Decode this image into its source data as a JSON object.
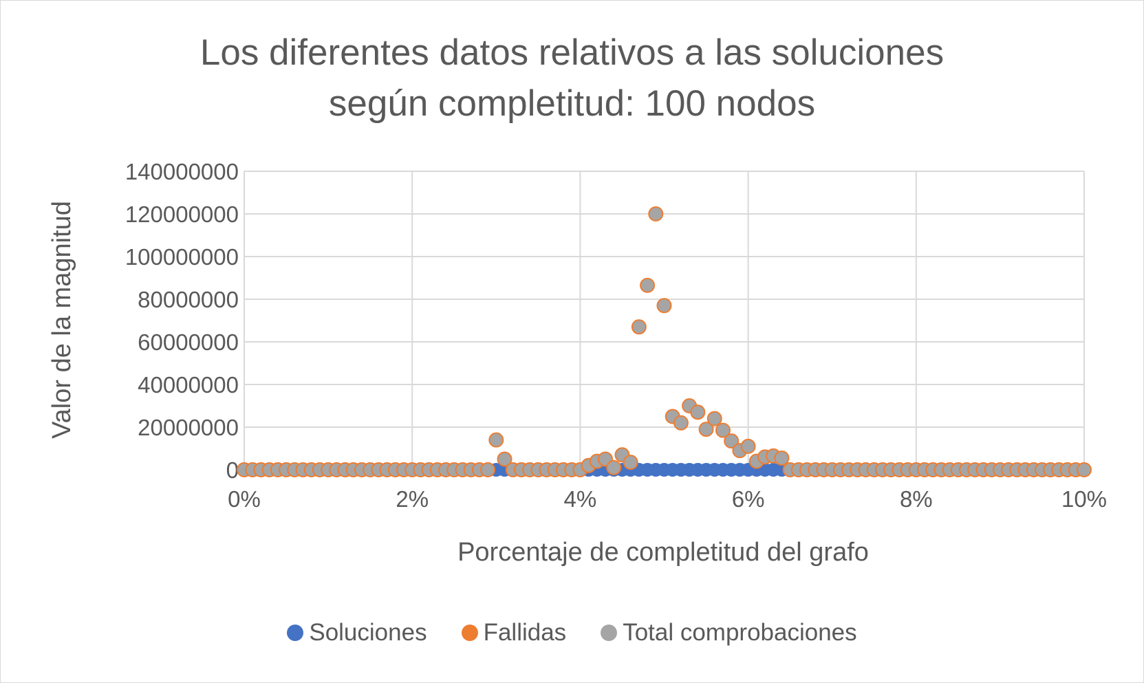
{
  "chart_data": {
    "type": "scatter",
    "title": "Los diferentes datos relativos a las soluciones según completitud: 100 nodos",
    "title_lines": [
      "Los diferentes datos relativos a las soluciones",
      "según completitud: 100 nodos"
    ],
    "xlabel": "Porcentaje de completitud del grafo",
    "ylabel": "Valor de la magnitud",
    "xlim": [
      0,
      0.1
    ],
    "ylim": [
      0,
      140000000
    ],
    "x_ticks": [
      "0%",
      "2%",
      "4%",
      "6%",
      "8%",
      "10%"
    ],
    "y_ticks": [
      "0",
      "20000000",
      "40000000",
      "60000000",
      "80000000",
      "100000000",
      "120000000",
      "140000000"
    ],
    "grid": true,
    "legend_position": "bottom",
    "x": [
      0.0,
      0.001,
      0.002,
      0.003,
      0.004,
      0.005,
      0.006,
      0.007,
      0.008,
      0.009,
      0.01,
      0.011,
      0.012,
      0.013,
      0.014,
      0.015,
      0.016,
      0.017,
      0.018,
      0.019,
      0.02,
      0.021,
      0.022,
      0.023,
      0.024,
      0.025,
      0.026,
      0.027,
      0.028,
      0.029,
      0.03,
      0.031,
      0.032,
      0.033,
      0.034,
      0.035,
      0.036,
      0.037,
      0.038,
      0.039,
      0.04,
      0.041,
      0.042,
      0.043,
      0.044,
      0.045,
      0.046,
      0.047,
      0.048,
      0.049,
      0.05,
      0.051,
      0.052,
      0.053,
      0.054,
      0.055,
      0.056,
      0.057,
      0.058,
      0.059,
      0.06,
      0.061,
      0.062,
      0.063,
      0.064,
      0.065,
      0.066,
      0.067,
      0.068,
      0.069,
      0.07,
      0.071,
      0.072,
      0.073,
      0.074,
      0.075,
      0.076,
      0.077,
      0.078,
      0.079,
      0.08,
      0.081,
      0.082,
      0.083,
      0.084,
      0.085,
      0.086,
      0.087,
      0.088,
      0.089,
      0.09,
      0.091,
      0.092,
      0.093,
      0.094,
      0.095,
      0.096,
      0.097,
      0.098,
      0.099,
      0.1
    ],
    "series": [
      {
        "name": "Soluciones",
        "color": "#4472c4",
        "values": [
          0,
          0,
          0,
          0,
          0,
          0,
          0,
          0,
          0,
          0,
          0,
          0,
          0,
          0,
          0,
          0,
          0,
          0,
          0,
          0,
          0,
          0,
          0,
          0,
          0,
          0,
          0,
          0,
          0,
          0,
          0,
          0,
          0,
          0,
          0,
          0,
          0,
          0,
          0,
          0,
          0,
          0,
          0,
          0,
          0,
          0,
          0,
          0,
          0,
          0,
          0,
          0,
          0,
          0,
          0,
          0,
          0,
          0,
          0,
          0,
          0,
          0,
          0,
          0,
          0,
          0,
          0,
          0,
          0,
          0,
          0,
          0,
          0,
          0,
          0,
          0,
          0,
          0,
          0,
          0,
          0,
          0,
          0,
          0,
          0,
          0,
          0,
          0,
          0,
          0,
          0,
          0,
          0,
          0,
          0,
          0,
          0,
          0,
          0,
          0,
          0
        ]
      },
      {
        "name": "Fallidas",
        "color": "#ed7d31",
        "values": [
          0,
          0,
          0,
          0,
          0,
          0,
          0,
          0,
          0,
          0,
          0,
          0,
          0,
          0,
          0,
          0,
          0,
          0,
          0,
          0,
          0,
          0,
          0,
          0,
          0,
          0,
          0,
          0,
          0,
          0,
          14000000,
          5000000,
          0,
          0,
          0,
          0,
          0,
          0,
          0,
          0,
          0,
          2000000,
          4000000,
          5000000,
          1000000,
          7000000,
          3500000,
          67000000,
          86500000,
          120000000,
          77000000,
          25000000,
          22000000,
          30000000,
          27000000,
          19000000,
          24000000,
          18500000,
          13500000,
          9000000,
          11000000,
          4000000,
          6000000,
          6500000,
          5500000,
          0,
          0,
          0,
          0,
          0,
          0,
          0,
          0,
          0,
          0,
          0,
          0,
          0,
          0,
          0,
          0,
          0,
          0,
          0,
          0,
          0,
          0,
          0,
          0,
          0,
          0,
          0,
          0,
          0,
          0,
          0,
          0,
          0,
          0,
          0,
          0
        ]
      },
      {
        "name": "Total comprobaciones",
        "color": "#a5a5a5",
        "values": [
          0,
          0,
          0,
          0,
          0,
          0,
          0,
          0,
          0,
          0,
          0,
          0,
          0,
          0,
          0,
          0,
          0,
          0,
          0,
          0,
          0,
          0,
          0,
          0,
          0,
          0,
          0,
          0,
          0,
          0,
          14000000,
          5000000,
          0,
          0,
          0,
          0,
          0,
          0,
          0,
          0,
          0,
          2000000,
          4000000,
          5000000,
          1000000,
          7000000,
          3500000,
          67000000,
          86500000,
          120000000,
          77000000,
          25000000,
          22000000,
          30000000,
          27000000,
          19000000,
          24000000,
          18500000,
          13500000,
          9000000,
          11000000,
          4000000,
          6000000,
          6500000,
          5500000,
          0,
          0,
          0,
          0,
          0,
          0,
          0,
          0,
          0,
          0,
          0,
          0,
          0,
          0,
          0,
          0,
          0,
          0,
          0,
          0,
          0,
          0,
          0,
          0,
          0,
          0,
          0,
          0,
          0,
          0,
          0,
          0,
          0,
          0,
          0,
          0
        ]
      }
    ]
  }
}
